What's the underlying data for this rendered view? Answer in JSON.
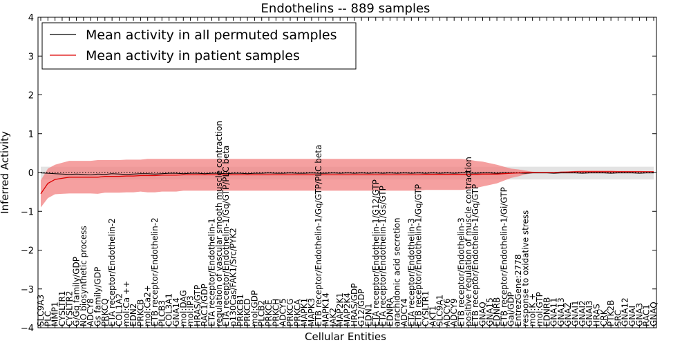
{
  "chart_data": {
    "type": "line",
    "title": "Endothelins -- 889 samples",
    "xlabel": "Cellular Entities",
    "ylabel": "Inferred Activity",
    "ylim": [
      -4,
      4
    ],
    "yticks": [
      -4,
      -3,
      -2,
      -1,
      0,
      1,
      2,
      3,
      4
    ],
    "grid": false,
    "legend_placement": "top-left",
    "reference_line": 0,
    "categories": [
      "SLC9A3",
      "PLC",
      "MMP1",
      "CYSLTR1",
      "CYSLTR2",
      "G/Gq family/GDP",
      "NO biosynthetic process",
      "ADCY8",
      "Gs family/GDP",
      "PRKCQ",
      "ETA receptor/Endothelin-2",
      "COL1A2",
      "mol:Ca ++",
      "EDN2",
      "PRKCB",
      "mol:Ca2+",
      "ETB receptor/Endothelin-2",
      "PLCB3",
      "COL3A1",
      "GNA14",
      "mol:DAG",
      "mol:IP3",
      "HRAS/GTP",
      "RAC1/GDP",
      "ETA receptor/Endothelin-1",
      "regulation of vascular smooth muscle contraction",
      "ETA receptor/Endothelin-1/Gq/GTP/PLC beta",
      "p130Cas/FAK1/Src/PYK2",
      "PRKCB1",
      "PRKCD",
      "mol:GDP",
      "PLCB2",
      "PRKCE",
      "PRKCH",
      "ADCY5",
      "PRKCG",
      "PRKCA",
      "MAPK1",
      "MAPK3",
      "ETB receptor/Endothelin-1/Gq/GTP/PLC beta",
      "MAPK14",
      "JAK2",
      "MAP2K1",
      "MAP2K4",
      "HRAS/GDP",
      "G12/GDP",
      "EDN1",
      "ETA receptor/Endothelin-1/G12/GTP",
      "ETA receptor/Endothelin-1/Gs/GTP",
      "EDNRA",
      "arachidonic acid secretion",
      "ADCY4",
      "ETA receptor/Endothelin-3",
      "ETB receptor/Endothelin-1/Gq/GTP",
      "CYSLTR1 ",
      "AKT1",
      "SLC9A1",
      "ADCY6",
      "ADCY9",
      "ETB receptor/Endothelin-3",
      "positive regulation of muscle contraction",
      "ETB receptor/Endothelin-1/Gq/GTP",
      "GNAQ",
      "GNA15",
      "EDNRB",
      "ETB receptor/Endothelin-1/Gi/GTP",
      "Gai/GDP",
      "EntrezGene:2778",
      "response to oxidative stress",
      "mol:K +",
      "mol:GTP",
      "EDNRB ",
      "GNA11",
      "GNA13",
      "GNAZ",
      "GNAI1",
      "GNAI2",
      "GNAI3",
      "HRAS",
      "CRK",
      "PTK2B",
      "SRC",
      "GNA12",
      "GNAI",
      "GNA3",
      "RAC1",
      "GNAQ "
    ],
    "series": [
      {
        "name": "Mean activity in all permuted samples",
        "color": "#000000",
        "values": [
          -0.01,
          -0.02,
          -0.03,
          -0.04,
          -0.05,
          -0.04,
          -0.05,
          -0.06,
          -0.04,
          -0.05,
          -0.03,
          -0.04,
          -0.05,
          -0.04,
          -0.03,
          -0.03,
          -0.04,
          -0.03,
          -0.02,
          -0.02,
          -0.03,
          -0.02,
          -0.02,
          -0.03,
          -0.02,
          -0.02,
          -0.03,
          -0.02,
          -0.02,
          -0.03,
          -0.02,
          -0.02,
          -0.01,
          -0.02,
          -0.02,
          -0.01,
          -0.02,
          -0.02,
          -0.01,
          -0.02,
          -0.02,
          -0.01,
          -0.02,
          -0.01,
          -0.02,
          -0.01,
          -0.02,
          -0.01,
          -0.02,
          -0.01,
          -0.02,
          -0.01,
          -0.02,
          -0.01,
          -0.02,
          -0.01,
          -0.02,
          -0.01,
          -0.02,
          -0.01,
          -0.01,
          -0.02,
          -0.01,
          -0.01,
          -0.02,
          -0.01,
          -0.01,
          -0.01,
          -0.02,
          -0.01,
          -0.01,
          -0.01,
          -0.02,
          -0.01,
          -0.01,
          -0.01,
          -0.02,
          -0.01,
          -0.01,
          -0.01,
          -0.02,
          -0.01,
          -0.01,
          -0.01,
          -0.02,
          -0.01,
          -0.01
        ],
        "band": {
          "color": "#c0c0c0",
          "upper": [
            0.15,
            0.15,
            0.15,
            0.15,
            0.15,
            0.15,
            0.15,
            0.15,
            0.15,
            0.15,
            0.15,
            0.15,
            0.15,
            0.15,
            0.15,
            0.15,
            0.15,
            0.15,
            0.15,
            0.15,
            0.15,
            0.15,
            0.15,
            0.15,
            0.15,
            0.15,
            0.15,
            0.15,
            0.15,
            0.15,
            0.15,
            0.15,
            0.15,
            0.15,
            0.15,
            0.15,
            0.15,
            0.15,
            0.15,
            0.15,
            0.15,
            0.15,
            0.15,
            0.15,
            0.15,
            0.15,
            0.15,
            0.15,
            0.15,
            0.15,
            0.15,
            0.15,
            0.15,
            0.15,
            0.15,
            0.15,
            0.15,
            0.15,
            0.15,
            0.15,
            0.15,
            0.15,
            0.15,
            0.15,
            0.15,
            0.15,
            0.15,
            0.15,
            0.15,
            0.15,
            0.15,
            0.15,
            0.15,
            0.15,
            0.15,
            0.15,
            0.15,
            0.15,
            0.15,
            0.15,
            0.15,
            0.15,
            0.15,
            0.15,
            0.15,
            0.15,
            0.15
          ],
          "lower": [
            -0.18,
            -0.18,
            -0.18,
            -0.18,
            -0.18,
            -0.18,
            -0.18,
            -0.18,
            -0.18,
            -0.18,
            -0.18,
            -0.18,
            -0.18,
            -0.18,
            -0.18,
            -0.18,
            -0.18,
            -0.18,
            -0.18,
            -0.18,
            -0.18,
            -0.18,
            -0.18,
            -0.18,
            -0.18,
            -0.18,
            -0.18,
            -0.18,
            -0.18,
            -0.18,
            -0.18,
            -0.18,
            -0.18,
            -0.18,
            -0.18,
            -0.18,
            -0.18,
            -0.18,
            -0.18,
            -0.18,
            -0.18,
            -0.18,
            -0.18,
            -0.18,
            -0.18,
            -0.18,
            -0.18,
            -0.18,
            -0.18,
            -0.18,
            -0.18,
            -0.18,
            -0.18,
            -0.18,
            -0.18,
            -0.18,
            -0.18,
            -0.18,
            -0.18,
            -0.18,
            -0.18,
            -0.18,
            -0.18,
            -0.18,
            -0.18,
            -0.18,
            -0.18,
            -0.18,
            -0.18,
            -0.18,
            -0.18,
            -0.18,
            -0.18,
            -0.18,
            -0.18,
            -0.18,
            -0.18,
            -0.18,
            -0.18,
            -0.18,
            -0.18,
            -0.18,
            -0.18,
            -0.18,
            -0.18,
            -0.18,
            -0.18
          ]
        }
      },
      {
        "name": "Mean activity in patient samples",
        "color": "#dd0000",
        "values": [
          -0.55,
          -0.28,
          -0.18,
          -0.15,
          -0.12,
          -0.12,
          -0.12,
          -0.12,
          -0.12,
          -0.1,
          -0.1,
          -0.1,
          -0.09,
          -0.09,
          -0.08,
          -0.08,
          -0.08,
          -0.07,
          -0.07,
          -0.07,
          -0.06,
          -0.06,
          -0.06,
          -0.06,
          -0.06,
          -0.06,
          -0.06,
          -0.06,
          -0.06,
          -0.06,
          -0.06,
          -0.06,
          -0.06,
          -0.06,
          -0.06,
          -0.06,
          -0.06,
          -0.06,
          -0.06,
          -0.06,
          -0.06,
          -0.06,
          -0.06,
          -0.06,
          -0.06,
          -0.06,
          -0.06,
          -0.06,
          -0.06,
          -0.06,
          -0.06,
          -0.06,
          -0.06,
          -0.06,
          -0.05,
          -0.05,
          -0.05,
          -0.05,
          -0.05,
          -0.05,
          -0.05,
          -0.05,
          -0.04,
          -0.04,
          -0.04,
          -0.03,
          -0.02,
          -0.01,
          0.0,
          0.0,
          0.0,
          0.0,
          0.0,
          0.01,
          0.01,
          0.02,
          0.02,
          0.02,
          0.02,
          0.02,
          0.02,
          0.02,
          0.02,
          0.02,
          0.02,
          0.02,
          0.02
        ],
        "band": {
          "color": "#f28080",
          "upper": [
            -0.2,
            0.1,
            0.2,
            0.25,
            0.3,
            0.3,
            0.3,
            0.3,
            0.32,
            0.32,
            0.32,
            0.32,
            0.33,
            0.33,
            0.33,
            0.35,
            0.35,
            0.35,
            0.35,
            0.35,
            0.35,
            0.35,
            0.35,
            0.35,
            0.35,
            0.35,
            0.35,
            0.35,
            0.35,
            0.35,
            0.35,
            0.35,
            0.35,
            0.35,
            0.35,
            0.35,
            0.35,
            0.35,
            0.35,
            0.35,
            0.35,
            0.35,
            0.35,
            0.35,
            0.35,
            0.35,
            0.35,
            0.35,
            0.35,
            0.35,
            0.35,
            0.35,
            0.35,
            0.35,
            0.35,
            0.35,
            0.35,
            0.35,
            0.35,
            0.35,
            0.33,
            0.3,
            0.28,
            0.24,
            0.2,
            0.15,
            0.1,
            0.08,
            0.05,
            0.02,
            0.01,
            0.01,
            0.01,
            0.02,
            0.03,
            0.04,
            0.05,
            0.05,
            0.05,
            0.05,
            0.05,
            0.04,
            0.04,
            0.04,
            0.04,
            0.03,
            0.03
          ],
          "lower": [
            -0.9,
            -0.66,
            -0.56,
            -0.55,
            -0.54,
            -0.54,
            -0.54,
            -0.54,
            -0.55,
            -0.52,
            -0.52,
            -0.52,
            -0.51,
            -0.51,
            -0.49,
            -0.51,
            -0.51,
            -0.49,
            -0.49,
            -0.49,
            -0.47,
            -0.47,
            -0.47,
            -0.47,
            -0.47,
            -0.47,
            -0.47,
            -0.47,
            -0.47,
            -0.47,
            -0.47,
            -0.47,
            -0.47,
            -0.47,
            -0.47,
            -0.47,
            -0.47,
            -0.47,
            -0.47,
            -0.47,
            -0.47,
            -0.47,
            -0.47,
            -0.47,
            -0.47,
            -0.47,
            -0.47,
            -0.47,
            -0.47,
            -0.47,
            -0.47,
            -0.47,
            -0.47,
            -0.47,
            -0.45,
            -0.45,
            -0.45,
            -0.45,
            -0.45,
            -0.45,
            -0.43,
            -0.4,
            -0.36,
            -0.32,
            -0.28,
            -0.21,
            -0.14,
            -0.1,
            -0.05,
            -0.02,
            -0.01,
            -0.01,
            -0.01,
            0.0,
            -0.01,
            0.0,
            -0.01,
            -0.01,
            -0.01,
            -0.01,
            -0.01,
            0.0,
            0.0,
            0.0,
            0.0,
            0.01,
            0.01
          ]
        }
      }
    ]
  }
}
